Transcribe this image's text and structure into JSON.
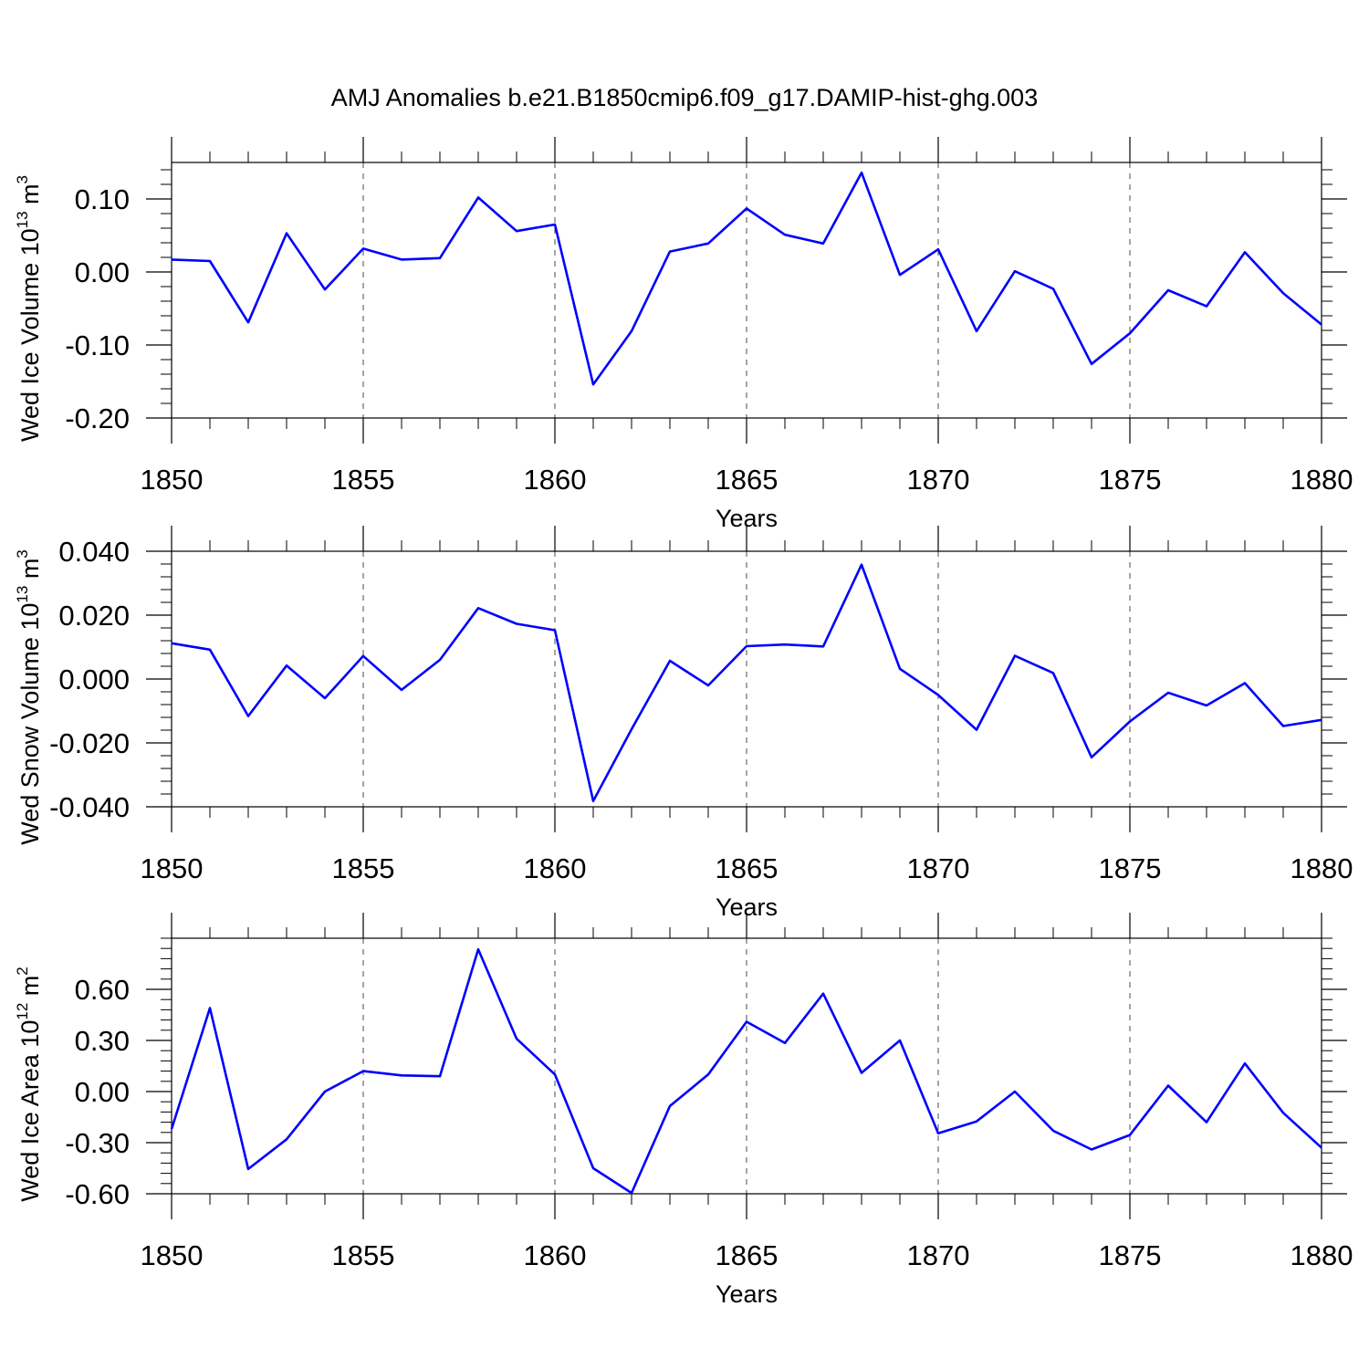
{
  "title": "AMJ Anomalies b.e21.B1850cmip6.f09_g17.DAMIP-hist-ghg.003",
  "colors": {
    "line": "#0000ff",
    "axis": "#000000",
    "grid": "#000000"
  },
  "chart_data": [
    {
      "type": "line",
      "ylabel": {
        "text": "Wed Ice Volume 10",
        "exp": "13",
        "unit": " m",
        "unit_exp": "3"
      },
      "xlabel": "Years",
      "xlim": [
        1850,
        1880
      ],
      "ylim": [
        -0.2,
        0.15
      ],
      "yticks": [
        -0.2,
        -0.1,
        0.0,
        0.1
      ],
      "ytick_labels": [
        "-0.20",
        "-0.10",
        "0.00",
        "0.10"
      ],
      "xticks": [
        1850,
        1855,
        1860,
        1865,
        1870,
        1875,
        1880
      ],
      "xtick_labels": [
        "1850",
        "1855",
        "1860",
        "1865",
        "1870",
        "1875",
        "1880"
      ],
      "grid": "vertical dashed at major x ticks",
      "x": [
        1850,
        1851,
        1852,
        1853,
        1854,
        1855,
        1856,
        1857,
        1858,
        1859,
        1860,
        1861,
        1862,
        1863,
        1864,
        1865,
        1866,
        1867,
        1868,
        1869,
        1870,
        1871,
        1872,
        1873,
        1874,
        1875,
        1876,
        1877,
        1878,
        1879,
        1880
      ],
      "values": [
        0.017,
        0.015,
        -0.069,
        0.053,
        -0.024,
        0.032,
        0.017,
        0.019,
        0.102,
        0.056,
        0.065,
        -0.154,
        -0.081,
        0.028,
        0.039,
        0.087,
        0.051,
        0.039,
        0.136,
        -0.004,
        0.031,
        -0.081,
        0.001,
        -0.023,
        -0.126,
        -0.084,
        -0.025,
        -0.047,
        0.027,
        -0.029,
        -0.072
      ]
    },
    {
      "type": "line",
      "ylabel": {
        "text": "Wed Snow Volume 10",
        "exp": "13",
        "unit": " m",
        "unit_exp": "3"
      },
      "xlabel": "Years",
      "xlim": [
        1850,
        1880
      ],
      "ylim": [
        -0.04,
        0.04
      ],
      "yticks": [
        -0.04,
        -0.02,
        0.0,
        0.02,
        0.04
      ],
      "ytick_labels": [
        "-0.040",
        "-0.020",
        "0.000",
        "0.020",
        "0.040"
      ],
      "xticks": [
        1850,
        1855,
        1860,
        1865,
        1870,
        1875,
        1880
      ],
      "xtick_labels": [
        "1850",
        "1855",
        "1860",
        "1865",
        "1870",
        "1875",
        "1880"
      ],
      "grid": "vertical dashed at major x ticks",
      "x": [
        1850,
        1851,
        1852,
        1853,
        1854,
        1855,
        1856,
        1857,
        1858,
        1859,
        1860,
        1861,
        1862,
        1863,
        1864,
        1865,
        1866,
        1867,
        1868,
        1869,
        1870,
        1871,
        1872,
        1873,
        1874,
        1875,
        1876,
        1877,
        1878,
        1879,
        1880
      ],
      "values": [
        0.0112,
        0.0092,
        -0.0116,
        0.0042,
        -0.006,
        0.0072,
        -0.0034,
        0.006,
        0.0222,
        0.0173,
        0.0153,
        -0.0382,
        -0.0157,
        0.0057,
        -0.002,
        0.0103,
        0.0108,
        0.0102,
        0.0358,
        0.0032,
        -0.005,
        -0.0159,
        0.0073,
        0.0019,
        -0.0245,
        -0.0133,
        -0.0043,
        -0.0083,
        -0.0013,
        -0.0147,
        -0.0128
      ]
    },
    {
      "type": "line",
      "ylabel": {
        "text": "Wed Ice Area 10",
        "exp": "12",
        "unit": " m",
        "unit_exp": "2"
      },
      "xlabel": "Years",
      "xlim": [
        1850,
        1880
      ],
      "ylim": [
        -0.6,
        0.9
      ],
      "yticks": [
        -0.6,
        -0.3,
        0.0,
        0.3,
        0.6
      ],
      "ytick_labels": [
        "-0.60",
        "-0.30",
        "0.00",
        "0.30",
        "0.60"
      ],
      "xticks": [
        1850,
        1855,
        1860,
        1865,
        1870,
        1875,
        1880
      ],
      "xtick_labels": [
        "1850",
        "1855",
        "1860",
        "1865",
        "1870",
        "1875",
        "1880"
      ],
      "grid": "vertical dashed at major x ticks",
      "x": [
        1850,
        1851,
        1852,
        1853,
        1854,
        1855,
        1856,
        1857,
        1858,
        1859,
        1860,
        1861,
        1862,
        1863,
        1864,
        1865,
        1866,
        1867,
        1868,
        1869,
        1870,
        1871,
        1872,
        1873,
        1874,
        1875,
        1876,
        1877,
        1878,
        1879,
        1880
      ],
      "values": [
        -0.22,
        0.49,
        -0.455,
        -0.28,
        0.0,
        0.12,
        0.095,
        0.09,
        0.835,
        0.31,
        0.1,
        -0.45,
        -0.595,
        -0.085,
        0.1,
        0.41,
        0.285,
        0.575,
        0.11,
        0.3,
        -0.245,
        -0.175,
        0.0,
        -0.23,
        -0.34,
        -0.255,
        0.035,
        -0.18,
        0.165,
        -0.125,
        -0.33
      ]
    }
  ]
}
